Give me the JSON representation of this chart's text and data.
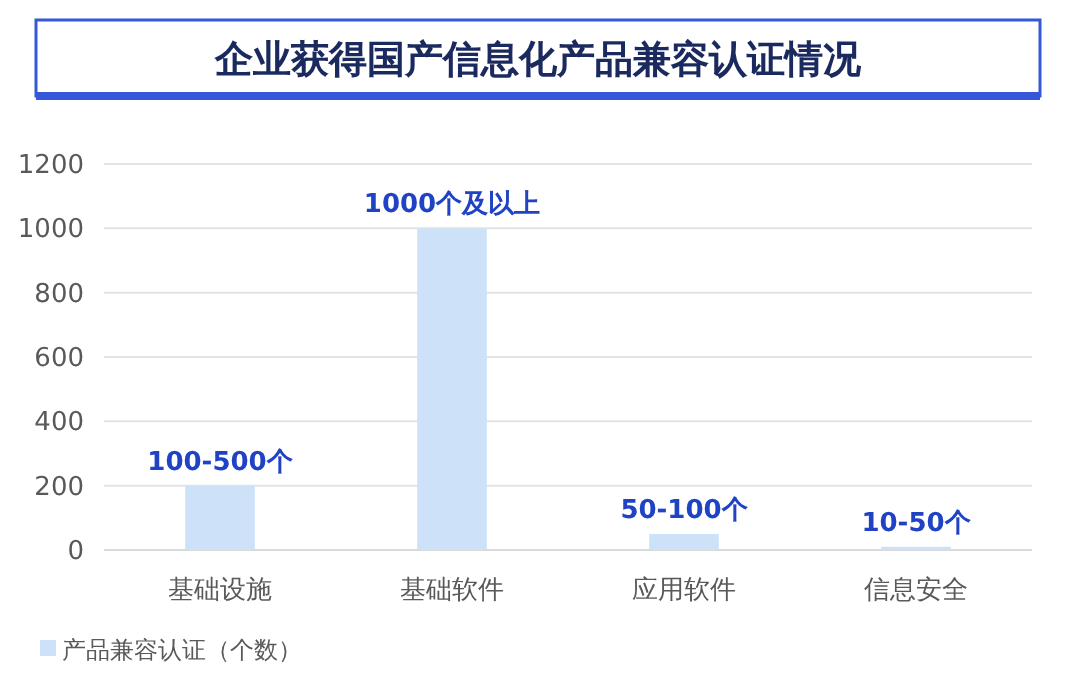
{
  "chart_data": {
    "type": "bar",
    "title": "企业获得国产信息化产品兼容认证情况",
    "categories": [
      "基础设施",
      "基础软件",
      "应用软件",
      "信息安全"
    ],
    "series": [
      {
        "name": "产品兼容认证（个数）",
        "color": "#cde1f8",
        "values": [
          200,
          1000,
          50,
          10
        ],
        "value_labels": [
          "100-500个",
          "1000个及以上",
          "50-100个",
          "10-50个"
        ]
      }
    ],
    "ylim": [
      0,
      1200
    ],
    "yticks": [
      0,
      200,
      400,
      600,
      800,
      1000,
      1200
    ],
    "grid": "y",
    "legend": "bottom left"
  }
}
